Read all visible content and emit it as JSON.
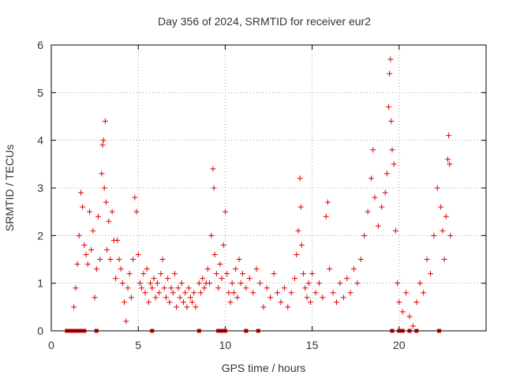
{
  "chart_data": {
    "type": "scatter",
    "title": "Day 356 of 2024, SRMTID for receiver eur2",
    "xlabel": "GPS time / hours",
    "ylabel": "SRMTID / TECUs",
    "xlim": [
      0,
      25
    ],
    "ylim": [
      0,
      6
    ],
    "x_ticks": [
      "0",
      "5",
      "10",
      "15",
      "20"
    ],
    "y_ticks": [
      "0",
      "1",
      "2",
      "3",
      "4",
      "5",
      "6"
    ],
    "grid": true,
    "marker": "plus",
    "color": "#e00000",
    "series": [
      {
        "name": "SRMTID",
        "points": [
          [
            1.3,
            0.5
          ],
          [
            1.4,
            0.9
          ],
          [
            1.5,
            1.4
          ],
          [
            1.6,
            2.0
          ],
          [
            1.7,
            2.9
          ],
          [
            1.8,
            2.6
          ],
          [
            1.9,
            1.8
          ],
          [
            2.0,
            1.6
          ],
          [
            2.1,
            1.4
          ],
          [
            2.2,
            2.5
          ],
          [
            2.3,
            1.7
          ],
          [
            2.4,
            2.1
          ],
          [
            2.5,
            0.7
          ],
          [
            2.6,
            1.3
          ],
          [
            2.7,
            2.4
          ],
          [
            2.8,
            1.5
          ],
          [
            2.9,
            3.3
          ],
          [
            2.95,
            3.9
          ],
          [
            3.0,
            4.0
          ],
          [
            3.05,
            3.0
          ],
          [
            3.1,
            4.4
          ],
          [
            3.15,
            2.7
          ],
          [
            3.2,
            1.7
          ],
          [
            3.3,
            2.3
          ],
          [
            3.4,
            1.5
          ],
          [
            3.5,
            2.5
          ],
          [
            3.6,
            1.9
          ],
          [
            3.7,
            1.1
          ],
          [
            3.8,
            1.9
          ],
          [
            3.9,
            1.5
          ],
          [
            4.0,
            1.3
          ],
          [
            4.1,
            1.0
          ],
          [
            4.2,
            0.6
          ],
          [
            4.3,
            0.2
          ],
          [
            4.4,
            0.9
          ],
          [
            4.5,
            1.2
          ],
          [
            4.6,
            0.7
          ],
          [
            4.7,
            1.5
          ],
          [
            4.8,
            2.8
          ],
          [
            4.9,
            2.5
          ],
          [
            5.0,
            1.6
          ],
          [
            5.1,
            1.0
          ],
          [
            5.2,
            0.9
          ],
          [
            5.3,
            1.2
          ],
          [
            5.4,
            0.8
          ],
          [
            5.5,
            1.3
          ],
          [
            5.6,
            0.6
          ],
          [
            5.7,
            1.0
          ],
          [
            5.8,
            0.9
          ],
          [
            5.9,
            1.1
          ],
          [
            6.0,
            0.7
          ],
          [
            6.1,
            1.0
          ],
          [
            6.2,
            0.8
          ],
          [
            6.3,
            1.2
          ],
          [
            6.4,
            1.5
          ],
          [
            6.5,
            0.9
          ],
          [
            6.6,
            0.7
          ],
          [
            6.7,
            1.1
          ],
          [
            6.8,
            0.6
          ],
          [
            6.9,
            0.9
          ],
          [
            7.0,
            0.8
          ],
          [
            7.1,
            1.2
          ],
          [
            7.2,
            0.5
          ],
          [
            7.3,
            0.9
          ],
          [
            7.4,
            0.7
          ],
          [
            7.5,
            1.0
          ],
          [
            7.6,
            0.6
          ],
          [
            7.7,
            0.8
          ],
          [
            7.8,
            0.5
          ],
          [
            7.9,
            0.9
          ],
          [
            8.0,
            0.7
          ],
          [
            8.1,
            0.6
          ],
          [
            8.2,
            0.8
          ],
          [
            8.3,
            0.5
          ],
          [
            8.5,
            1.0
          ],
          [
            8.6,
            0.8
          ],
          [
            8.7,
            1.1
          ],
          [
            8.8,
            0.9
          ],
          [
            8.9,
            1.0
          ],
          [
            9.0,
            1.3
          ],
          [
            9.1,
            1.0
          ],
          [
            9.2,
            2.0
          ],
          [
            9.3,
            3.4
          ],
          [
            9.35,
            3.0
          ],
          [
            9.4,
            1.6
          ],
          [
            9.5,
            1.2
          ],
          [
            9.6,
            0.9
          ],
          [
            9.7,
            1.4
          ],
          [
            9.8,
            1.1
          ],
          [
            9.9,
            1.8
          ],
          [
            10.0,
            2.5
          ],
          [
            10.1,
            1.2
          ],
          [
            10.2,
            0.8
          ],
          [
            10.3,
            0.6
          ],
          [
            10.4,
            1.0
          ],
          [
            10.5,
            0.8
          ],
          [
            10.6,
            1.3
          ],
          [
            10.7,
            0.7
          ],
          [
            10.8,
            1.5
          ],
          [
            10.9,
            1.0
          ],
          [
            11.0,
            1.2
          ],
          [
            11.2,
            0.9
          ],
          [
            11.4,
            1.1
          ],
          [
            11.6,
            0.8
          ],
          [
            11.8,
            1.3
          ],
          [
            12.0,
            1.0
          ],
          [
            12.2,
            0.5
          ],
          [
            12.4,
            0.9
          ],
          [
            12.6,
            0.7
          ],
          [
            12.8,
            1.2
          ],
          [
            13.0,
            0.8
          ],
          [
            13.2,
            0.6
          ],
          [
            13.4,
            0.9
          ],
          [
            13.6,
            0.5
          ],
          [
            13.8,
            0.8
          ],
          [
            14.0,
            1.1
          ],
          [
            14.1,
            1.6
          ],
          [
            14.2,
            2.1
          ],
          [
            14.3,
            3.2
          ],
          [
            14.35,
            2.6
          ],
          [
            14.4,
            1.8
          ],
          [
            14.5,
            1.2
          ],
          [
            14.6,
            0.9
          ],
          [
            14.7,
            0.7
          ],
          [
            14.8,
            1.0
          ],
          [
            14.9,
            0.6
          ],
          [
            15.0,
            1.2
          ],
          [
            15.2,
            0.8
          ],
          [
            15.4,
            1.0
          ],
          [
            15.6,
            0.7
          ],
          [
            15.8,
            2.4
          ],
          [
            15.9,
            2.7
          ],
          [
            16.0,
            1.3
          ],
          [
            16.2,
            0.8
          ],
          [
            16.4,
            0.6
          ],
          [
            16.6,
            1.0
          ],
          [
            16.8,
            0.7
          ],
          [
            17.0,
            1.1
          ],
          [
            17.2,
            0.8
          ],
          [
            17.4,
            1.3
          ],
          [
            17.6,
            1.0
          ],
          [
            17.8,
            1.5
          ],
          [
            18.0,
            2.0
          ],
          [
            18.2,
            2.5
          ],
          [
            18.4,
            3.2
          ],
          [
            18.5,
            3.8
          ],
          [
            18.6,
            2.8
          ],
          [
            18.8,
            2.2
          ],
          [
            19.0,
            2.6
          ],
          [
            19.2,
            2.9
          ],
          [
            19.3,
            3.3
          ],
          [
            19.4,
            4.7
          ],
          [
            19.45,
            5.4
          ],
          [
            19.5,
            5.7
          ],
          [
            19.55,
            4.4
          ],
          [
            19.6,
            3.8
          ],
          [
            19.7,
            3.5
          ],
          [
            19.8,
            2.1
          ],
          [
            19.9,
            1.0
          ],
          [
            20.0,
            0.6
          ],
          [
            20.2,
            0.4
          ],
          [
            20.4,
            0.8
          ],
          [
            20.6,
            0.3
          ],
          [
            20.8,
            0.1
          ],
          [
            21.0,
            0.6
          ],
          [
            21.2,
            1.0
          ],
          [
            21.4,
            0.8
          ],
          [
            21.6,
            1.5
          ],
          [
            21.8,
            1.2
          ],
          [
            22.0,
            2.0
          ],
          [
            22.2,
            3.0
          ],
          [
            22.4,
            2.6
          ],
          [
            22.5,
            2.1
          ],
          [
            22.6,
            1.5
          ],
          [
            22.7,
            2.4
          ],
          [
            22.8,
            3.6
          ],
          [
            22.85,
            4.1
          ],
          [
            22.9,
            3.5
          ],
          [
            22.95,
            2.0
          ]
        ]
      }
    ],
    "zero_marks_x": [
      0.9,
      1.1,
      1.3,
      1.5,
      1.7,
      1.9,
      2.6,
      5.8,
      8.5,
      9.6,
      9.8,
      10.0,
      11.2,
      11.9,
      19.6,
      20.0,
      20.2,
      20.6,
      21.0,
      22.3
    ]
  }
}
